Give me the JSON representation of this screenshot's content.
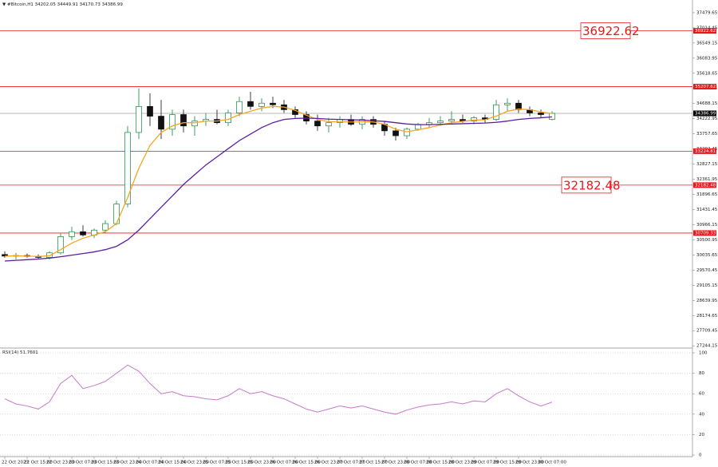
{
  "chart_data": [
    {
      "type": "candlestick",
      "title": "▼ #Bitcoin,H1",
      "categories": [
        "22 Oct 2023",
        null,
        "22 Oct 15:00",
        null,
        "22 Oct 23:00",
        null,
        "23 Oct 07:00",
        null,
        "23 Oct 15:00",
        null,
        "23 Oct 23:00",
        null,
        "24 Oct 07:00",
        null,
        "24 Oct 15:00",
        null,
        "24 Oct 23:00",
        null,
        "25 Oct 07:00",
        null,
        "25 Oct 15:00",
        null,
        "25 Oct 23:00",
        null,
        "26 Oct 07:00",
        null,
        "26 Oct 15:00",
        null,
        "26 Oct 23:00",
        null,
        "27 Oct 07:00",
        null,
        "27 Oct 15:00",
        null,
        "27 Oct 23:00",
        null,
        "28 Oct 07:00",
        null,
        "28 Oct 15:00",
        null,
        "28 Oct 23:00",
        null,
        "29 Oct 07:00",
        null,
        "29 Oct 15:00",
        null,
        "29 Oct 23:00",
        null,
        "30 Oct 07:00",
        null
      ],
      "ohlc": [
        [
          30050,
          30150,
          29950,
          30000
        ],
        [
          30000,
          30100,
          29900,
          30020
        ],
        [
          30020,
          30080,
          29950,
          29990
        ],
        [
          29990,
          30050,
          29900,
          29960
        ],
        [
          29960,
          30150,
          29900,
          30100
        ],
        [
          30100,
          30700,
          30050,
          30600
        ],
        [
          30600,
          30900,
          30500,
          30750
        ],
        [
          30750,
          30950,
          30600,
          30650
        ],
        [
          30650,
          30850,
          30550,
          30800
        ],
        [
          30800,
          31100,
          30700,
          31000
        ],
        [
          31000,
          31700,
          30950,
          31600
        ],
        [
          31600,
          34000,
          31500,
          33800
        ],
        [
          33800,
          35150,
          33600,
          34600
        ],
        [
          34600,
          35000,
          34000,
          34300
        ],
        [
          34300,
          34800,
          33600,
          33900
        ],
        [
          33900,
          34500,
          33700,
          34350
        ],
        [
          34350,
          34500,
          33800,
          34000
        ],
        [
          34000,
          34300,
          33700,
          34150
        ],
        [
          34150,
          34400,
          34000,
          34200
        ],
        [
          34200,
          34500,
          34050,
          34100
        ],
        [
          34100,
          34500,
          34000,
          34400
        ],
        [
          34400,
          34900,
          34300,
          34750
        ],
        [
          34750,
          35050,
          34500,
          34600
        ],
        [
          34600,
          34850,
          34450,
          34700
        ],
        [
          34700,
          34900,
          34550,
          34650
        ],
        [
          34650,
          34800,
          34400,
          34500
        ],
        [
          34500,
          34600,
          34250,
          34350
        ],
        [
          34350,
          34450,
          34050,
          34150
        ],
        [
          34150,
          34350,
          33850,
          34000
        ],
        [
          34000,
          34250,
          33800,
          34100
        ],
        [
          34100,
          34300,
          33950,
          34200
        ],
        [
          34200,
          34350,
          34000,
          34050
        ],
        [
          34050,
          34300,
          33900,
          34200
        ],
        [
          34200,
          34300,
          33950,
          34050
        ],
        [
          34050,
          34150,
          33700,
          33850
        ],
        [
          33850,
          33950,
          33550,
          33700
        ],
        [
          33700,
          33950,
          33600,
          33900
        ],
        [
          33900,
          34100,
          33850,
          34050
        ],
        [
          34050,
          34250,
          33950,
          34100
        ],
        [
          34100,
          34300,
          34000,
          34150
        ],
        [
          34150,
          34450,
          34050,
          34200
        ],
        [
          34200,
          34350,
          34100,
          34150
        ],
        [
          34150,
          34300,
          34050,
          34250
        ],
        [
          34250,
          34350,
          34100,
          34200
        ],
        [
          34200,
          34800,
          34150,
          34650
        ],
        [
          34650,
          34850,
          34450,
          34700
        ],
        [
          34700,
          34800,
          34400,
          34500
        ],
        [
          34500,
          34600,
          34300,
          34400
        ],
        [
          34400,
          34500,
          34250,
          34350
        ],
        [
          34202.05,
          34449.91,
          34170.73,
          34386.99
        ]
      ],
      "up_color": "#0b8a3a",
      "down_color": "#111111",
      "moving_averages": [
        {
          "color": "#f5a623",
          "values": [
            30000,
            30010,
            30000,
            29990,
            30010,
            30200,
            30400,
            30550,
            30650,
            30750,
            31000,
            31800,
            32700,
            33400,
            33800,
            34000,
            34100,
            34100,
            34150,
            34150,
            34200,
            34350,
            34450,
            34550,
            34600,
            34580,
            34480,
            34330,
            34200,
            34130,
            34130,
            34120,
            34130,
            34120,
            34050,
            33900,
            33820,
            33880,
            33950,
            34030,
            34100,
            34140,
            34180,
            34190,
            34300,
            34450,
            34520,
            34500,
            34430,
            34380
          ]
        },
        {
          "color": "#5b1f9e",
          "values": [
            29850,
            29870,
            29890,
            29910,
            29940,
            29980,
            30030,
            30080,
            30130,
            30200,
            30300,
            30500,
            30800,
            31150,
            31500,
            31850,
            32200,
            32500,
            32800,
            33050,
            33300,
            33550,
            33750,
            33950,
            34100,
            34200,
            34230,
            34240,
            34230,
            34210,
            34200,
            34190,
            34180,
            34160,
            34140,
            34100,
            34060,
            34040,
            34040,
            34050,
            34060,
            34070,
            34080,
            34090,
            34110,
            34150,
            34200,
            34230,
            34250,
            34280
          ]
        }
      ],
      "levels": [
        36922.62,
        35207.62,
        33224.81,
        32182.48,
        30709.33
      ],
      "level_color": "#e8191b",
      "annotated_levels": [
        0,
        3
      ],
      "ylim": [
        27200,
        37870
      ],
      "yticks": [
        27244.15,
        27709.45,
        28174.65,
        28639.95,
        29105.15,
        29570.45,
        30035.65,
        30500.95,
        30966.15,
        31431.45,
        31896.65,
        32361.95,
        32827.15,
        33292.45,
        33757.65,
        34222.95,
        34688.15,
        35153.45,
        35618.65,
        36083.95,
        36549.15,
        37014.45,
        37479.65
      ]
    },
    {
      "type": "line",
      "title": "RSI(14)",
      "color": "#c77ac9",
      "values": [
        55,
        50,
        48,
        45,
        52,
        70,
        78,
        65,
        68,
        72,
        80,
        88,
        82,
        70,
        60,
        62,
        58,
        57,
        55,
        54,
        58,
        65,
        60,
        62,
        58,
        55,
        50,
        45,
        42,
        45,
        48,
        46,
        48,
        45,
        42,
        40,
        44,
        47,
        49,
        50,
        52,
        50,
        53,
        52,
        60,
        65,
        58,
        52,
        48,
        51.7601
      ],
      "ylim": [
        0,
        100
      ],
      "yticks": [
        0,
        20,
        40,
        60,
        80,
        100
      ],
      "grid": true
    }
  ]
}
